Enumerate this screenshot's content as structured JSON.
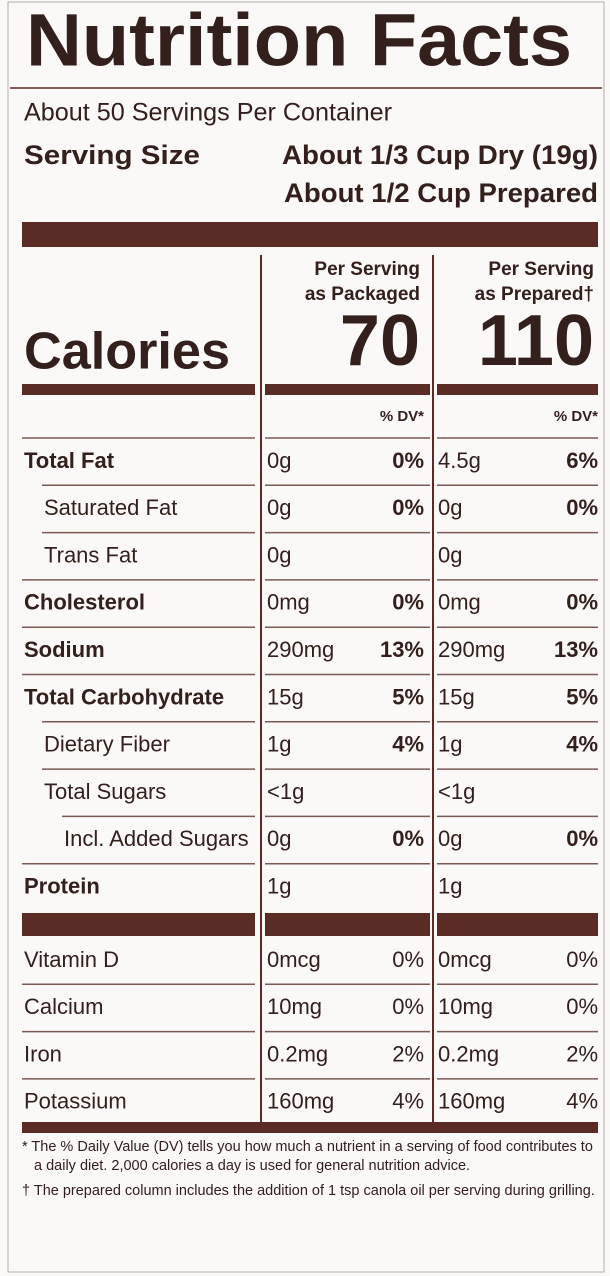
{
  "title": "Nutrition Facts",
  "servings": "About 50 Servings Per Container",
  "serving_size": {
    "label": "Serving Size",
    "lines": [
      "About 1/3 Cup Dry (19g)",
      "About 1/2 Cup Prepared"
    ]
  },
  "calories_label": "Calories",
  "columns": [
    {
      "heading": [
        "Per Serving",
        "as Packaged"
      ],
      "calories": "70",
      "dv_header": "% DV*"
    },
    {
      "heading": [
        "Per Serving",
        "as Prepared†"
      ],
      "calories": "110",
      "dv_header": "% DV*"
    }
  ],
  "nutrients": [
    {
      "name": "Total Fat",
      "bold": true,
      "indent": 0,
      "values": [
        {
          "amount": "0g",
          "dv": "0%"
        },
        {
          "amount": "4.5g",
          "dv": "6%"
        }
      ]
    },
    {
      "name": "Saturated Fat",
      "bold": false,
      "indent": 1,
      "values": [
        {
          "amount": "0g",
          "dv": "0%"
        },
        {
          "amount": "0g",
          "dv": "0%"
        }
      ]
    },
    {
      "name": "Trans Fat",
      "bold": false,
      "indent": 1,
      "values": [
        {
          "amount": "0g"
        },
        {
          "amount": "0g"
        }
      ]
    },
    {
      "name": "Cholesterol",
      "bold": true,
      "indent": 0,
      "values": [
        {
          "amount": "0mg",
          "dv": "0%"
        },
        {
          "amount": "0mg",
          "dv": "0%"
        }
      ]
    },
    {
      "name": "Sodium",
      "bold": true,
      "indent": 0,
      "values": [
        {
          "amount": "290mg",
          "dv": "13%"
        },
        {
          "amount": "290mg",
          "dv": "13%"
        }
      ]
    },
    {
      "name": "Total Carbohydrate",
      "bold": true,
      "indent": 0,
      "values": [
        {
          "amount": "15g",
          "dv": "5%"
        },
        {
          "amount": "15g",
          "dv": "5%"
        }
      ]
    },
    {
      "name": "Dietary Fiber",
      "bold": false,
      "indent": 1,
      "values": [
        {
          "amount": "1g",
          "dv": "4%"
        },
        {
          "amount": "1g",
          "dv": "4%"
        }
      ]
    },
    {
      "name": "Total Sugars",
      "bold": false,
      "indent": 1,
      "values": [
        {
          "amount": "<1g"
        },
        {
          "amount": "<1g"
        }
      ]
    },
    {
      "name": "Incl. Added Sugars",
      "bold": false,
      "indent": 2,
      "values": [
        {
          "amount": "0g",
          "dv": "0%"
        },
        {
          "amount": "0g",
          "dv": "0%"
        }
      ]
    },
    {
      "name": "Protein",
      "bold": true,
      "indent": 0,
      "values": [
        {
          "amount": "1g"
        },
        {
          "amount": "1g"
        }
      ]
    }
  ],
  "vitamins": [
    {
      "name": "Vitamin D",
      "values": [
        {
          "amount": "0mcg",
          "dv": "0%"
        },
        {
          "amount": "0mcg",
          "dv": "0%"
        }
      ]
    },
    {
      "name": "Calcium",
      "values": [
        {
          "amount": "10mg",
          "dv": "0%"
        },
        {
          "amount": "10mg",
          "dv": "0%"
        }
      ]
    },
    {
      "name": "Iron",
      "values": [
        {
          "amount": "0.2mg",
          "dv": "2%"
        },
        {
          "amount": "0.2mg",
          "dv": "2%"
        }
      ]
    },
    {
      "name": "Potassium",
      "values": [
        {
          "amount": "160mg",
          "dv": "4%"
        },
        {
          "amount": "160mg",
          "dv": "4%"
        }
      ]
    }
  ],
  "footnotes": [
    "* The % Daily Value (DV) tells you how much a nutrient in a serving of food contributes to a daily diet. 2,000 calories a day is used for general nutrition advice.",
    "† The prepared column includes the addition of 1 tsp canola oil per serving during grilling."
  ]
}
